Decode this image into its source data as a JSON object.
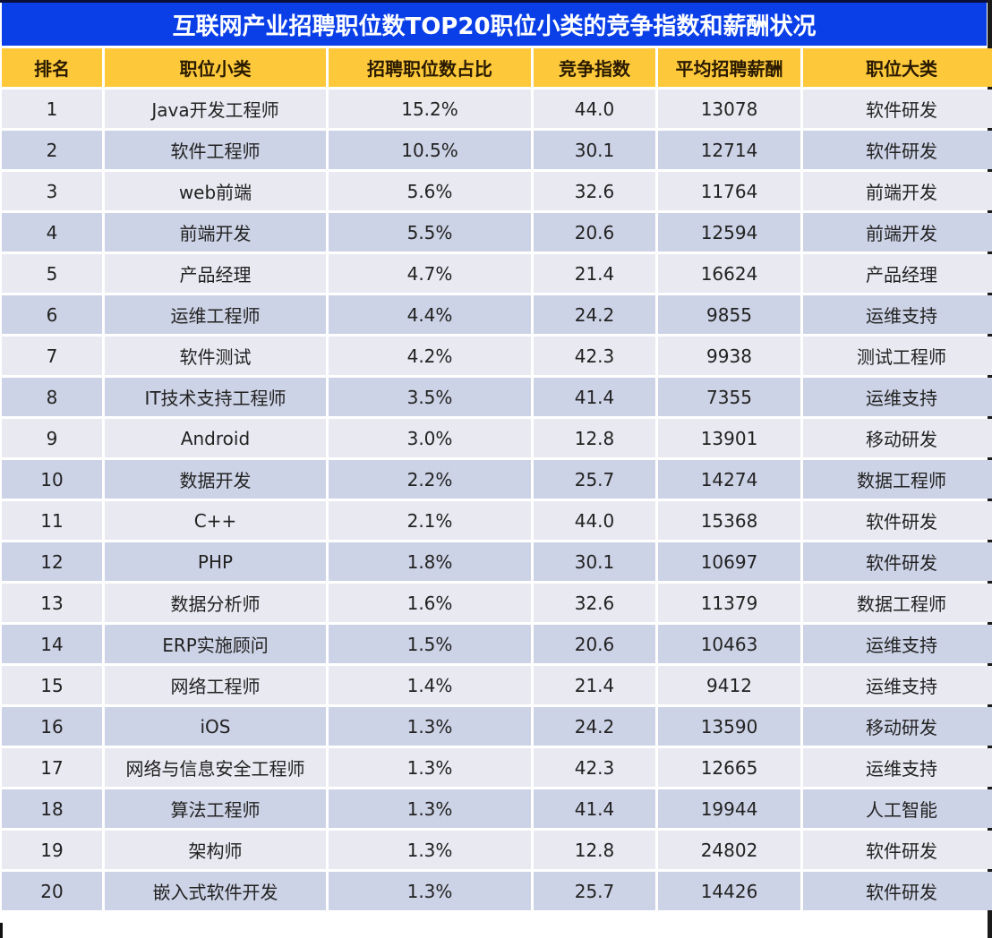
{
  "title": "互联网产业招聘职位数TOP20职位小类的竞争指数和薪酬状况",
  "colors": {
    "title_bg": "#0a3fe8",
    "header_bg": "#fdc93b",
    "row_light": "#e9e9f2",
    "row_dark": "#cdd3e6"
  },
  "table": {
    "headers": [
      "排名",
      "职位小类",
      "招聘职位数占比",
      "竞争指数",
      "平均招聘薪酬",
      "职位大类"
    ],
    "rows": [
      [
        "1",
        "Java开发工程师",
        "15.2%",
        "44.0",
        "13078",
        "软件研发"
      ],
      [
        "2",
        "软件工程师",
        "10.5%",
        "30.1",
        "12714",
        "软件研发"
      ],
      [
        "3",
        "web前端",
        "5.6%",
        "32.6",
        "11764",
        "前端开发"
      ],
      [
        "4",
        "前端开发",
        "5.5%",
        "20.6",
        "12594",
        "前端开发"
      ],
      [
        "5",
        "产品经理",
        "4.7%",
        "21.4",
        "16624",
        "产品经理"
      ],
      [
        "6",
        "运维工程师",
        "4.4%",
        "24.2",
        "9855",
        "运维支持"
      ],
      [
        "7",
        "软件测试",
        "4.2%",
        "42.3",
        "9938",
        "测试工程师"
      ],
      [
        "8",
        "IT技术支持工程师",
        "3.5%",
        "41.4",
        "7355",
        "运维支持"
      ],
      [
        "9",
        "Android",
        "3.0%",
        "12.8",
        "13901",
        "移动研发"
      ],
      [
        "10",
        "数据开发",
        "2.2%",
        "25.7",
        "14274",
        "数据工程师"
      ],
      [
        "11",
        "C++",
        "2.1%",
        "44.0",
        "15368",
        "软件研发"
      ],
      [
        "12",
        "PHP",
        "1.8%",
        "30.1",
        "10697",
        "软件研发"
      ],
      [
        "13",
        "数据分析师",
        "1.6%",
        "32.6",
        "11379",
        "数据工程师"
      ],
      [
        "14",
        "ERP实施顾问",
        "1.5%",
        "20.6",
        "10463",
        "运维支持"
      ],
      [
        "15",
        "网络工程师",
        "1.4%",
        "21.4",
        "9412",
        "运维支持"
      ],
      [
        "16",
        "iOS",
        "1.3%",
        "24.2",
        "13590",
        "移动研发"
      ],
      [
        "17",
        "网络与信息安全工程师",
        "1.3%",
        "42.3",
        "12665",
        "运维支持"
      ],
      [
        "18",
        "算法工程师",
        "1.3%",
        "41.4",
        "19944",
        "人工智能"
      ],
      [
        "19",
        "架构师",
        "1.3%",
        "12.8",
        "24802",
        "软件研发"
      ],
      [
        "20",
        "嵌入式软件开发",
        "1.3%",
        "25.7",
        "14426",
        "软件研发"
      ]
    ]
  }
}
